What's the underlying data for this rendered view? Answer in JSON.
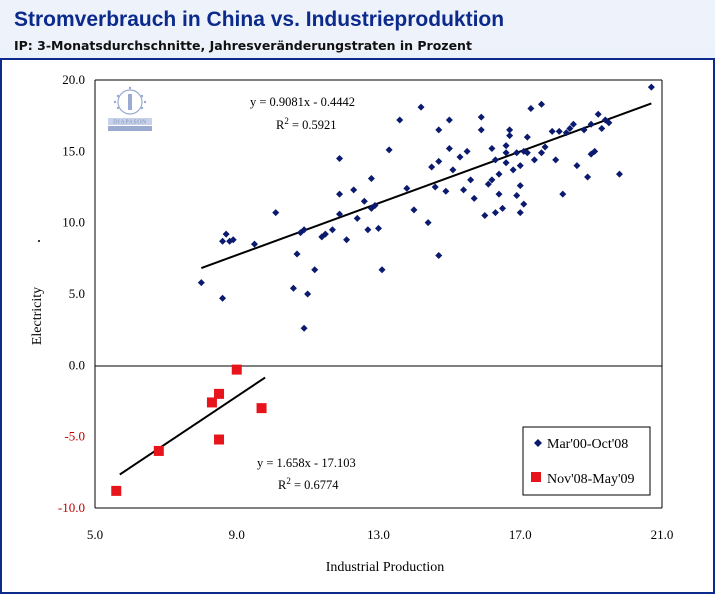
{
  "header": {
    "title": "Stromverbrauch in China vs. Industrieproduktion",
    "subtitle": "IP: 3-Monatsdurchschnitte, Jahresveränderungstraten in Prozent"
  },
  "logo": {
    "text": "DIAPASON"
  },
  "colors": {
    "series1": "#0a1a6e",
    "series2": "#e8141b",
    "negtick": "#c00000",
    "frame": "#0b2a8c"
  },
  "chart_data": {
    "type": "scatter",
    "xlabel": "Industrial Production",
    "ylabel": "Electricity",
    "xlim": [
      5.0,
      21.0
    ],
    "ylim": [
      -10.0,
      20.0
    ],
    "xticks": [
      "5.0",
      "9.0",
      "13.0",
      "17.0",
      "21.0"
    ],
    "yticks": [
      "20.0",
      "15.0",
      "10.0",
      "5.0",
      "0.0",
      "-5.0",
      "-10.0"
    ],
    "series": [
      {
        "name": "Mar'00-Oct'08",
        "marker": "diamond",
        "trendline": {
          "slope": 0.9081,
          "intercept": -0.4442,
          "x_range": [
            8.0,
            20.7
          ]
        },
        "equation": "y = 0.9081x - 0.4442",
        "r2_label": "R",
        "r2_exp": "2",
        "r2_value": " = 0.5921",
        "points": [
          [
            8.0,
            5.8
          ],
          [
            8.6,
            4.7
          ],
          [
            8.6,
            8.7
          ],
          [
            8.7,
            9.2
          ],
          [
            8.8,
            8.7
          ],
          [
            8.9,
            8.8
          ],
          [
            9.5,
            8.5
          ],
          [
            10.1,
            10.7
          ],
          [
            10.6,
            5.4
          ],
          [
            10.7,
            7.8
          ],
          [
            10.8,
            9.3
          ],
          [
            10.9,
            9.5
          ],
          [
            11.0,
            5.0
          ],
          [
            10.9,
            2.6
          ],
          [
            11.2,
            6.7
          ],
          [
            11.4,
            9.0
          ],
          [
            11.5,
            9.2
          ],
          [
            11.7,
            9.5
          ],
          [
            11.9,
            10.6
          ],
          [
            11.9,
            12.0
          ],
          [
            11.9,
            14.5
          ],
          [
            12.1,
            8.8
          ],
          [
            12.3,
            12.3
          ],
          [
            12.4,
            10.3
          ],
          [
            12.6,
            11.5
          ],
          [
            12.7,
            9.5
          ],
          [
            12.8,
            13.1
          ],
          [
            12.8,
            11.0
          ],
          [
            12.9,
            11.2
          ],
          [
            13.0,
            9.6
          ],
          [
            13.1,
            6.7
          ],
          [
            13.3,
            15.1
          ],
          [
            13.6,
            17.2
          ],
          [
            13.8,
            12.4
          ],
          [
            14.0,
            10.9
          ],
          [
            14.2,
            18.1
          ],
          [
            14.4,
            10.0
          ],
          [
            14.5,
            13.9
          ],
          [
            14.6,
            12.5
          ],
          [
            14.7,
            16.5
          ],
          [
            14.7,
            14.3
          ],
          [
            14.7,
            7.7
          ],
          [
            14.9,
            12.2
          ],
          [
            15.0,
            15.2
          ],
          [
            15.0,
            17.2
          ],
          [
            15.1,
            13.7
          ],
          [
            15.3,
            14.6
          ],
          [
            15.4,
            12.3
          ],
          [
            15.5,
            15.0
          ],
          [
            15.6,
            13.0
          ],
          [
            15.7,
            11.7
          ],
          [
            15.9,
            16.5
          ],
          [
            16.0,
            10.5
          ],
          [
            16.1,
            12.7
          ],
          [
            16.2,
            13.0
          ],
          [
            16.3,
            14.4
          ],
          [
            16.2,
            15.2
          ],
          [
            16.3,
            10.7
          ],
          [
            16.4,
            12.0
          ],
          [
            16.4,
            13.4
          ],
          [
            16.5,
            11.0
          ],
          [
            16.6,
            14.2
          ],
          [
            16.6,
            14.9
          ],
          [
            16.6,
            15.4
          ],
          [
            16.7,
            16.1
          ],
          [
            16.7,
            16.5
          ],
          [
            16.8,
            13.7
          ],
          [
            16.9,
            11.9
          ],
          [
            16.9,
            14.9
          ],
          [
            17.0,
            12.6
          ],
          [
            17.0,
            14.0
          ],
          [
            17.0,
            10.7
          ],
          [
            17.1,
            15.0
          ],
          [
            17.1,
            11.3
          ],
          [
            17.2,
            14.9
          ],
          [
            17.2,
            16.0
          ],
          [
            17.3,
            18.0
          ],
          [
            17.4,
            14.4
          ],
          [
            17.6,
            14.9
          ],
          [
            17.7,
            15.3
          ],
          [
            17.9,
            16.4
          ],
          [
            18.0,
            14.4
          ],
          [
            18.1,
            16.4
          ],
          [
            18.2,
            12.0
          ],
          [
            18.3,
            16.3
          ],
          [
            18.4,
            16.6
          ],
          [
            18.5,
            16.9
          ],
          [
            18.6,
            14.0
          ],
          [
            18.8,
            16.5
          ],
          [
            18.9,
            13.2
          ],
          [
            19.0,
            14.8
          ],
          [
            19.0,
            16.9
          ],
          [
            19.1,
            15.0
          ],
          [
            19.2,
            17.6
          ],
          [
            19.3,
            16.6
          ],
          [
            19.4,
            17.2
          ],
          [
            19.5,
            17.0
          ],
          [
            19.8,
            13.4
          ],
          [
            20.7,
            19.5
          ],
          [
            17.6,
            18.3
          ],
          [
            15.9,
            17.4
          ]
        ]
      },
      {
        "name": "Nov'08-May'09",
        "marker": "square",
        "trendline": {
          "slope": 1.658,
          "intercept": -17.103,
          "x_range": [
            5.7,
            9.8
          ]
        },
        "equation": "y = 1.658x - 17.103",
        "r2_label": "R",
        "r2_exp": "2",
        "r2_value": " = 0.6774",
        "points": [
          [
            5.6,
            -8.8
          ],
          [
            6.8,
            -6.0
          ],
          [
            8.3,
            -2.6
          ],
          [
            8.5,
            -2.0
          ],
          [
            8.5,
            -5.2
          ],
          [
            9.0,
            -0.3
          ],
          [
            9.7,
            -3.0
          ]
        ]
      }
    ],
    "legend_position": "bottom-right"
  }
}
